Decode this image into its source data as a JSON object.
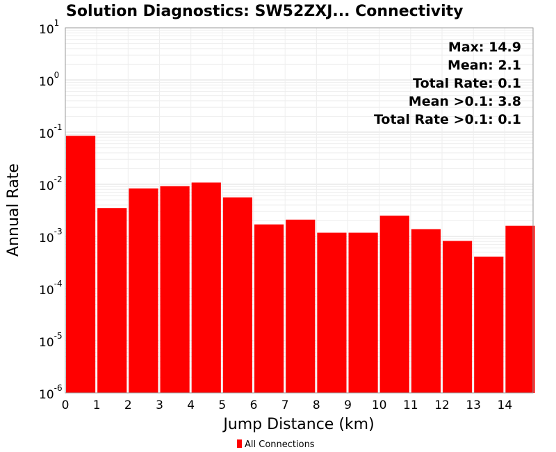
{
  "chart_data": {
    "type": "bar",
    "title": "Solution Diagnostics: SW52ZXJ... Connectivity",
    "xlabel": "Jump Distance (km)",
    "ylabel": "Annual Rate",
    "y_scale": "log",
    "ylim": [
      1e-06,
      10
    ],
    "xlim": [
      0,
      14.9
    ],
    "x_ticks": [
      0,
      1,
      2,
      3,
      4,
      5,
      6,
      7,
      8,
      9,
      10,
      11,
      12,
      13,
      14
    ],
    "y_tick_exponents": [
      "1",
      "0",
      "-1",
      "-2",
      "-3",
      "-4",
      "-5",
      "-6"
    ],
    "bin_width": 1,
    "grid": true,
    "bar_color": "#ff0000",
    "legend": {
      "position": "bottom-center",
      "entries": [
        {
          "name": "All Connections",
          "color": "#ff0000"
        }
      ]
    },
    "series": [
      {
        "name": "All Connections",
        "x": [
          0,
          1,
          2,
          3,
          4,
          5,
          6,
          7,
          8,
          9,
          10,
          11,
          12,
          13,
          14
        ],
        "values": [
          0.085,
          0.0035,
          0.0083,
          0.0092,
          0.0108,
          0.0056,
          0.0017,
          0.0021,
          0.00118,
          0.00118,
          0.0025,
          0.00138,
          0.00082,
          0.00041,
          0.0016
        ]
      }
    ],
    "annotations": [
      "Max: 14.9",
      "Mean: 2.1",
      "Total Rate: 0.1",
      "Mean >0.1: 3.8",
      "Total Rate >0.1: 0.1"
    ]
  }
}
